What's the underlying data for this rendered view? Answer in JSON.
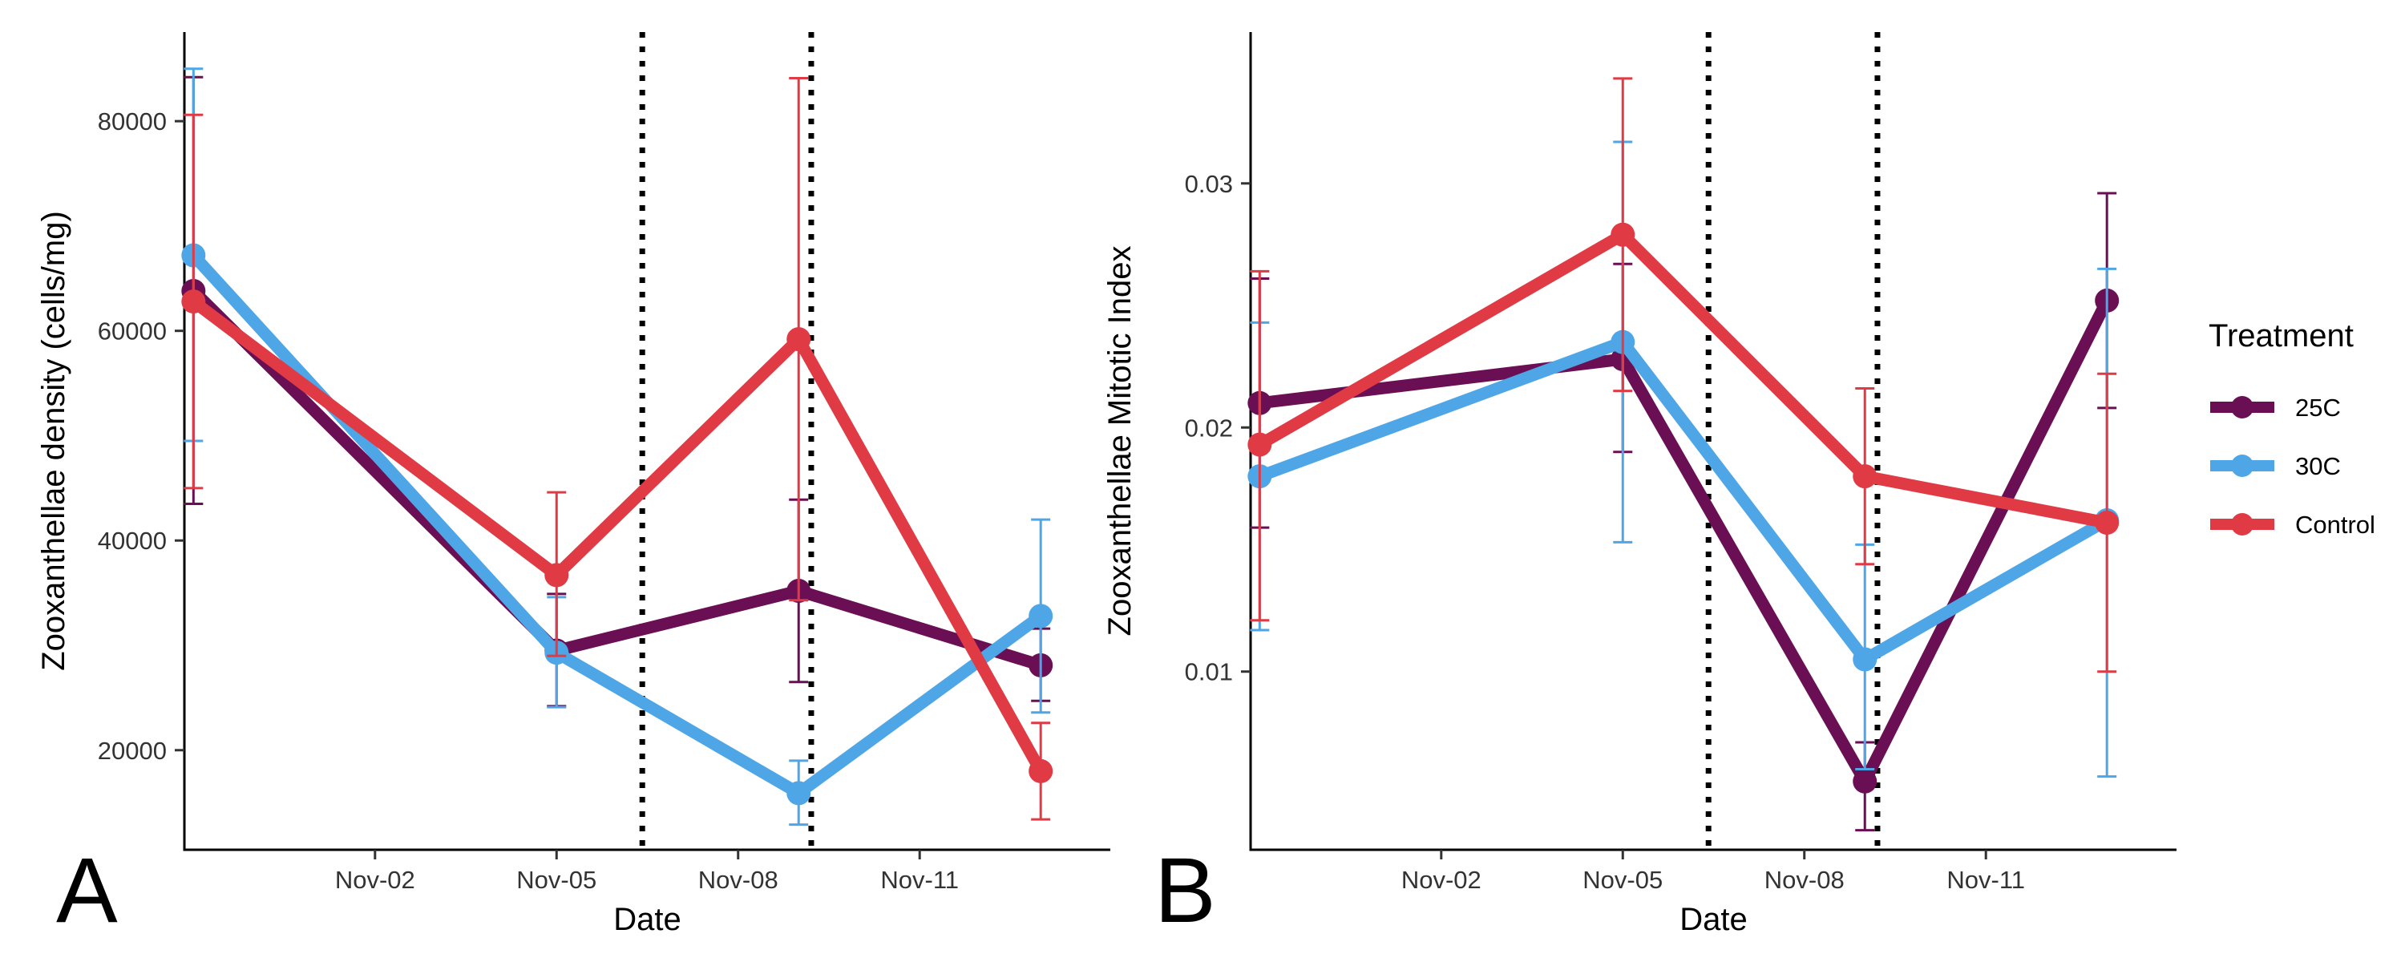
{
  "legend": {
    "title": "Treatment",
    "position": "right",
    "entries": [
      {
        "name": "25C",
        "color": "#6B0F55"
      },
      {
        "name": "30C",
        "color": "#4EA6E6"
      },
      {
        "name": "Control",
        "color": "#E03A45"
      }
    ]
  },
  "chart_data": [
    {
      "type": "line",
      "panel_label": "A",
      "xlabel": "Date",
      "ylabel": "Zooxanthellae density (cells/mg)",
      "x_ticks": [
        "Nov-02",
        "Nov-05",
        "Nov-08",
        "Nov-11"
      ],
      "y_ticks": [
        "20000",
        "40000",
        "60000",
        "80000"
      ],
      "y_tick_values": [
        20000,
        40000,
        60000,
        80000
      ],
      "ylim": [
        10500,
        88500
      ],
      "error_bars": true,
      "vertical_reference_lines": [
        "Nov-06 10:00",
        "Nov-09 05:00"
      ],
      "x": [
        "Oct-30",
        "Nov-05",
        "Nov-09",
        "Nov-13"
      ],
      "series": [
        {
          "name": "25C",
          "color": "#6B0F55",
          "values": [
            63800,
            29500,
            35200,
            28100
          ],
          "lower": [
            43500,
            24200,
            26500,
            24700
          ],
          "upper": [
            84200,
            34900,
            43900,
            31600
          ]
        },
        {
          "name": "30C",
          "color": "#4EA6E6",
          "values": [
            67200,
            29300,
            15900,
            32800
          ],
          "lower": [
            49500,
            24100,
            12900,
            23600
          ],
          "upper": [
            85000,
            34600,
            19000,
            42000
          ]
        },
        {
          "name": "Control",
          "color": "#E03A45",
          "values": [
            62800,
            36700,
            59200,
            18000
          ],
          "lower": [
            45000,
            29000,
            34300,
            13400
          ],
          "upper": [
            80600,
            44600,
            84100,
            22600
          ]
        }
      ]
    },
    {
      "type": "line",
      "panel_label": "B",
      "xlabel": "Date",
      "ylabel": "Zooxanthellae Mitotic Index",
      "x_ticks": [
        "Nov-02",
        "Nov-05",
        "Nov-08",
        "Nov-11"
      ],
      "y_ticks": [
        "0.01",
        "0.02",
        "0.03"
      ],
      "y_tick_values": [
        0.01,
        0.02,
        0.03
      ],
      "ylim": [
        0.0027,
        0.0362
      ],
      "error_bars": true,
      "vertical_reference_lines": [
        "Nov-06 10:00",
        "Nov-09 05:00"
      ],
      "x": [
        "Oct-30",
        "Nov-05",
        "Nov-09",
        "Nov-13"
      ],
      "series": [
        {
          "name": "25C",
          "color": "#6B0F55",
          "values": [
            0.021,
            0.0228,
            0.0055,
            0.0252
          ],
          "lower": [
            0.0159,
            0.019,
            0.0035,
            0.0208
          ],
          "upper": [
            0.0261,
            0.0267,
            0.0071,
            0.0296
          ]
        },
        {
          "name": "30C",
          "color": "#4EA6E6",
          "values": [
            0.018,
            0.0235,
            0.0105,
            0.0162
          ],
          "lower": [
            0.0117,
            0.0153,
            0.006,
            0.0057
          ],
          "upper": [
            0.0243,
            0.0317,
            0.0152,
            0.0265
          ]
        },
        {
          "name": "Control",
          "color": "#E03A45",
          "values": [
            0.0193,
            0.0279,
            0.018,
            0.0161
          ],
          "lower": [
            0.0121,
            0.0215,
            0.0144,
            0.01
          ],
          "upper": [
            0.0264,
            0.0343,
            0.0216,
            0.0222
          ]
        }
      ]
    }
  ]
}
